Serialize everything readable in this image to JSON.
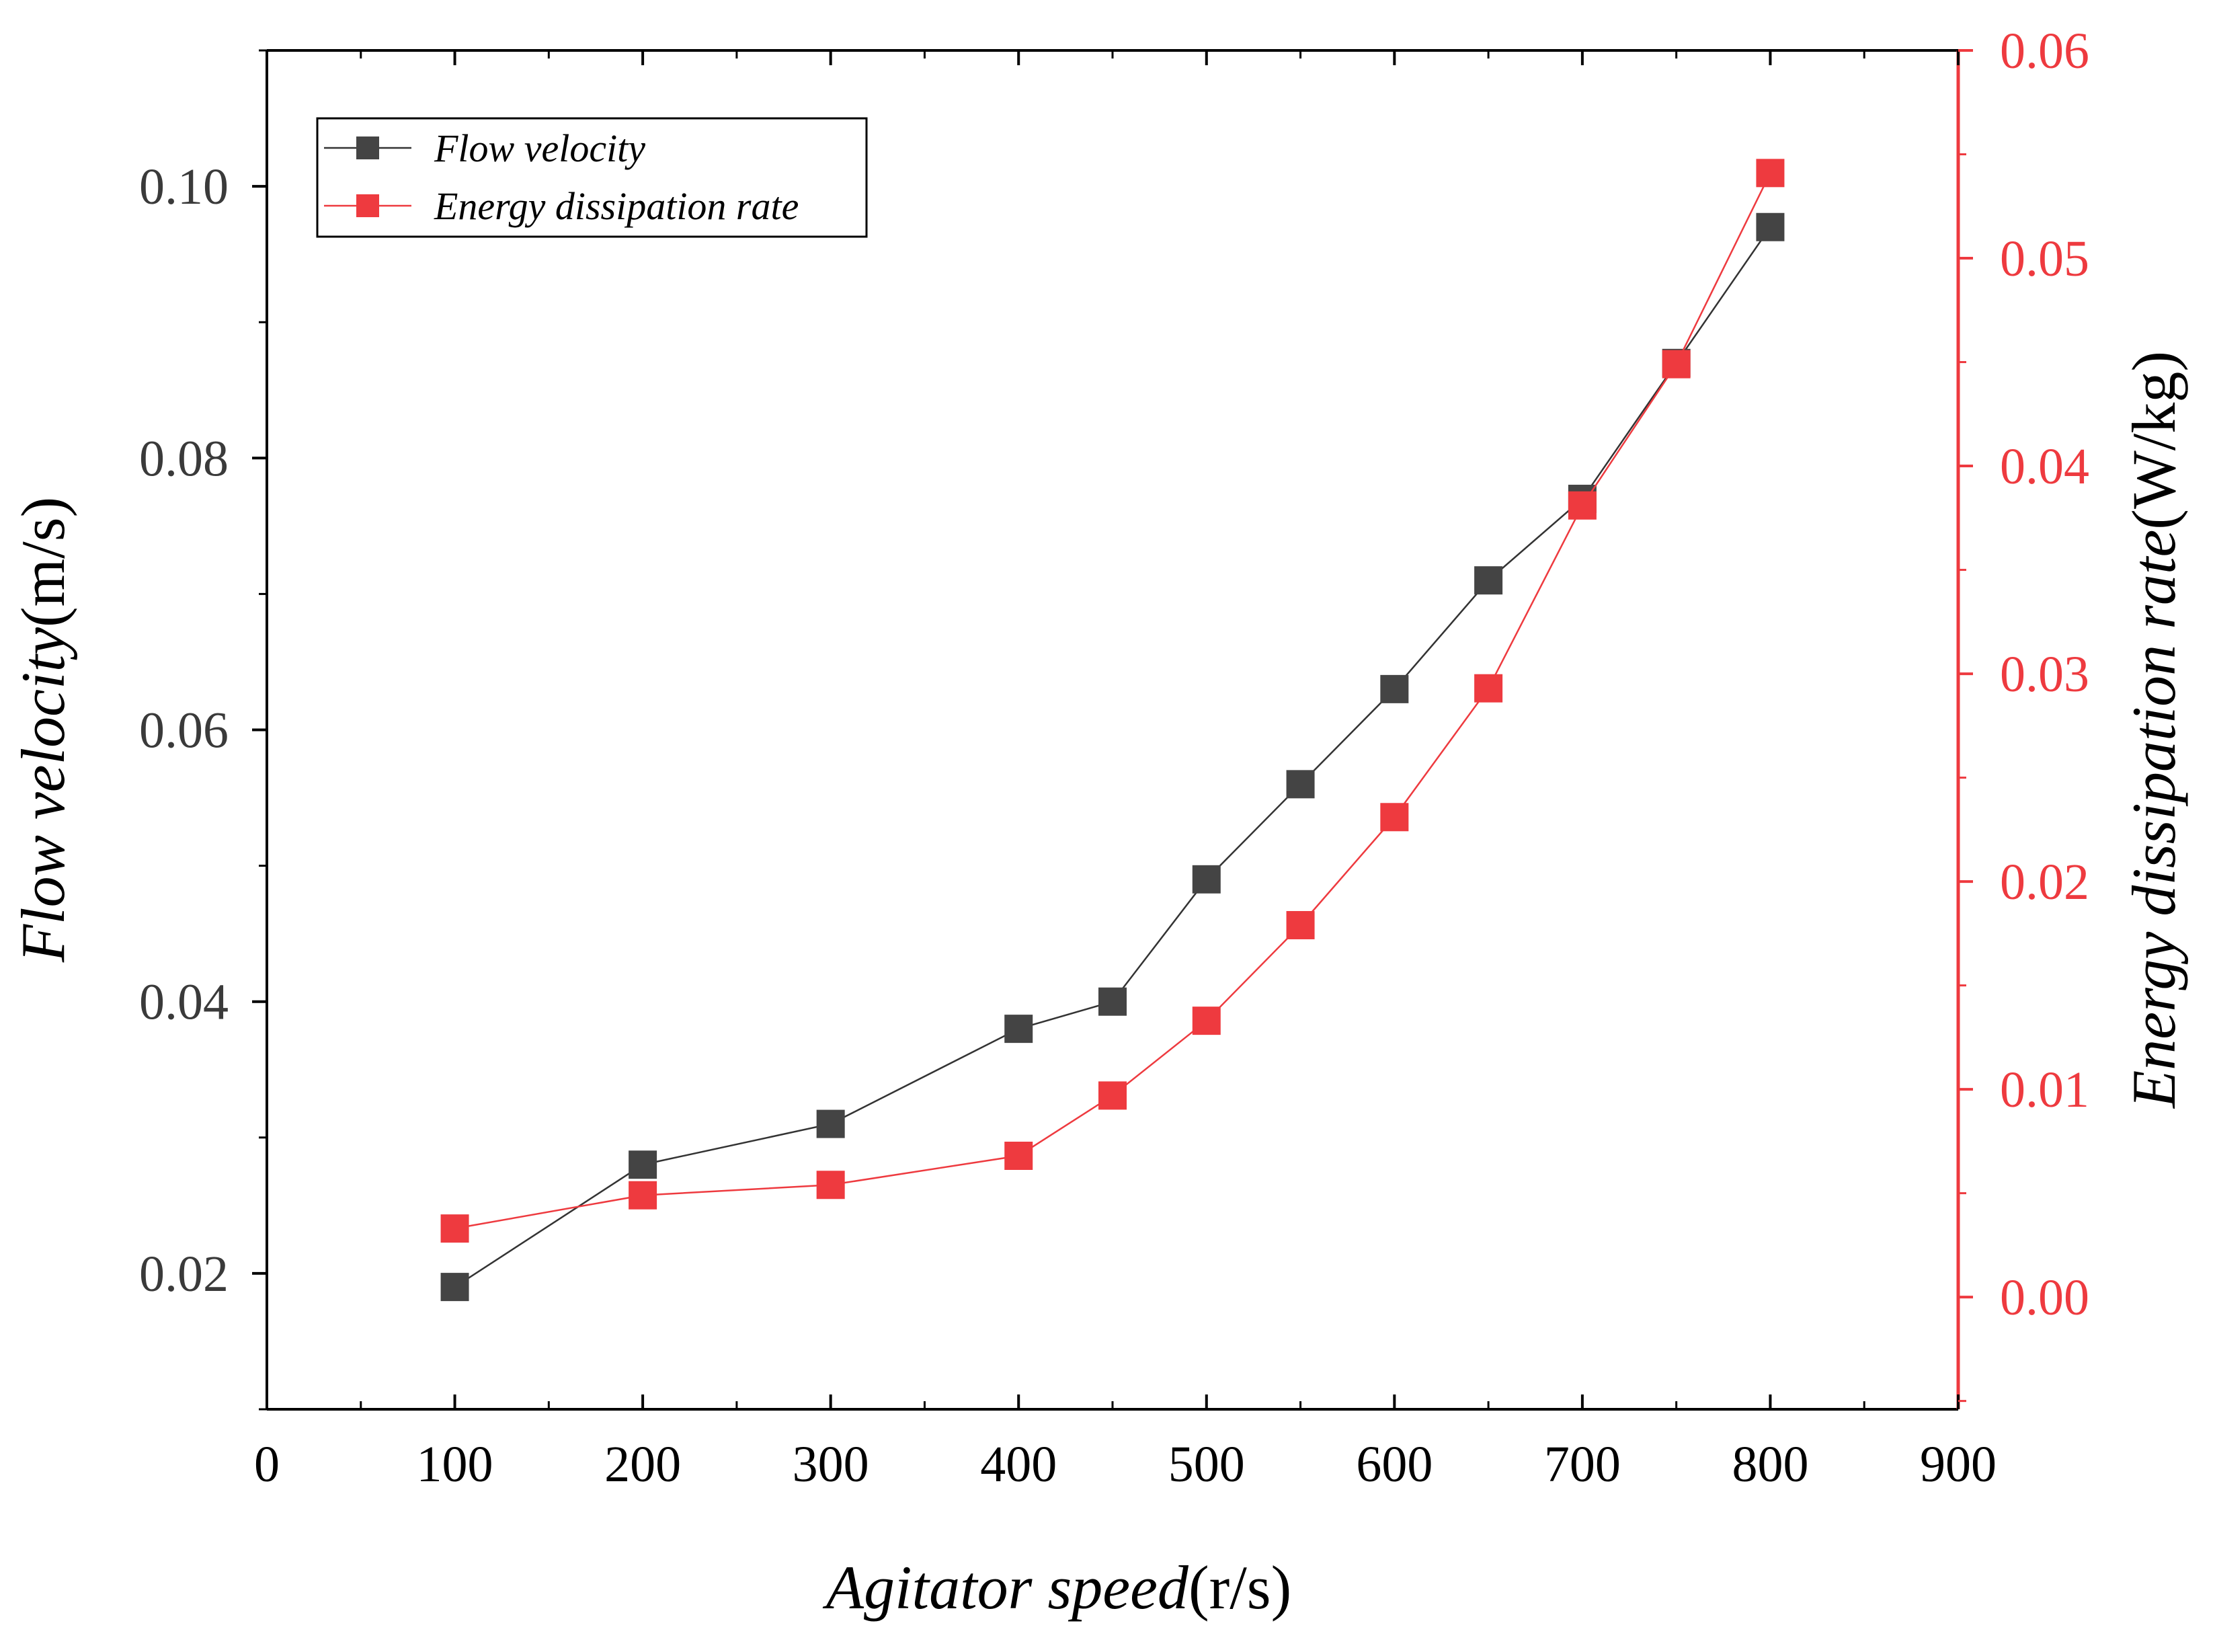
{
  "chart_data": {
    "type": "line",
    "title": "",
    "xlabel": {
      "italic": "Agitator speed",
      "unit": "(r/s)"
    },
    "ylabel_left": {
      "italic": "Flow velocity",
      "unit": "(m/s)"
    },
    "ylabel_right": {
      "italic": "Energy dissipation rate",
      "unit": "(W/kg)"
    },
    "xlim": [
      0,
      900
    ],
    "ylim_left": [
      0.01,
      0.11
    ],
    "ylim_right": [
      -0.0054,
      0.06
    ],
    "grid": false,
    "legend_position": "top-left",
    "x_ticks": [
      {
        "value": 0,
        "label": "0"
      },
      {
        "value": 100,
        "label": "100"
      },
      {
        "value": 200,
        "label": "200"
      },
      {
        "value": 300,
        "label": "300"
      },
      {
        "value": 400,
        "label": "400"
      },
      {
        "value": 500,
        "label": "500"
      },
      {
        "value": 600,
        "label": "600"
      },
      {
        "value": 700,
        "label": "700"
      },
      {
        "value": 800,
        "label": "800"
      },
      {
        "value": 900,
        "label": "900"
      }
    ],
    "y_ticks_left": [
      {
        "value": 0.02,
        "label": "0.02"
      },
      {
        "value": 0.04,
        "label": "0.04"
      },
      {
        "value": 0.06,
        "label": "0.06"
      },
      {
        "value": 0.08,
        "label": "0.08"
      },
      {
        "value": 0.1,
        "label": "0.10"
      }
    ],
    "y_ticks_right": [
      {
        "value": 0.0,
        "label": "0.00"
      },
      {
        "value": 0.01,
        "label": "0.01"
      },
      {
        "value": 0.02,
        "label": "0.02"
      },
      {
        "value": 0.03,
        "label": "0.03"
      },
      {
        "value": 0.04,
        "label": "0.04"
      },
      {
        "value": 0.05,
        "label": "0.05"
      },
      {
        "value": 0.06,
        "label": "0.06"
      }
    ],
    "x": [
      100,
      200,
      300,
      400,
      450,
      500,
      550,
      600,
      650,
      700,
      750,
      800
    ],
    "series": [
      {
        "name": "Flow velocity",
        "axis": "left",
        "color": "#444444",
        "line_color": "#333333",
        "values": [
          0.019,
          0.028,
          0.031,
          0.038,
          0.04,
          0.049,
          0.056,
          0.063,
          0.071,
          0.077,
          0.087,
          0.097
        ]
      },
      {
        "name": "Energy dissipation rate",
        "axis": "right",
        "color": "#ee3a3f",
        "line_color": "#ee3a3f",
        "values": [
          0.0033,
          0.0049,
          0.0054,
          0.0068,
          0.0097,
          0.0133,
          0.0179,
          0.0231,
          0.0293,
          0.0381,
          0.0449,
          0.0541
        ]
      }
    ]
  }
}
